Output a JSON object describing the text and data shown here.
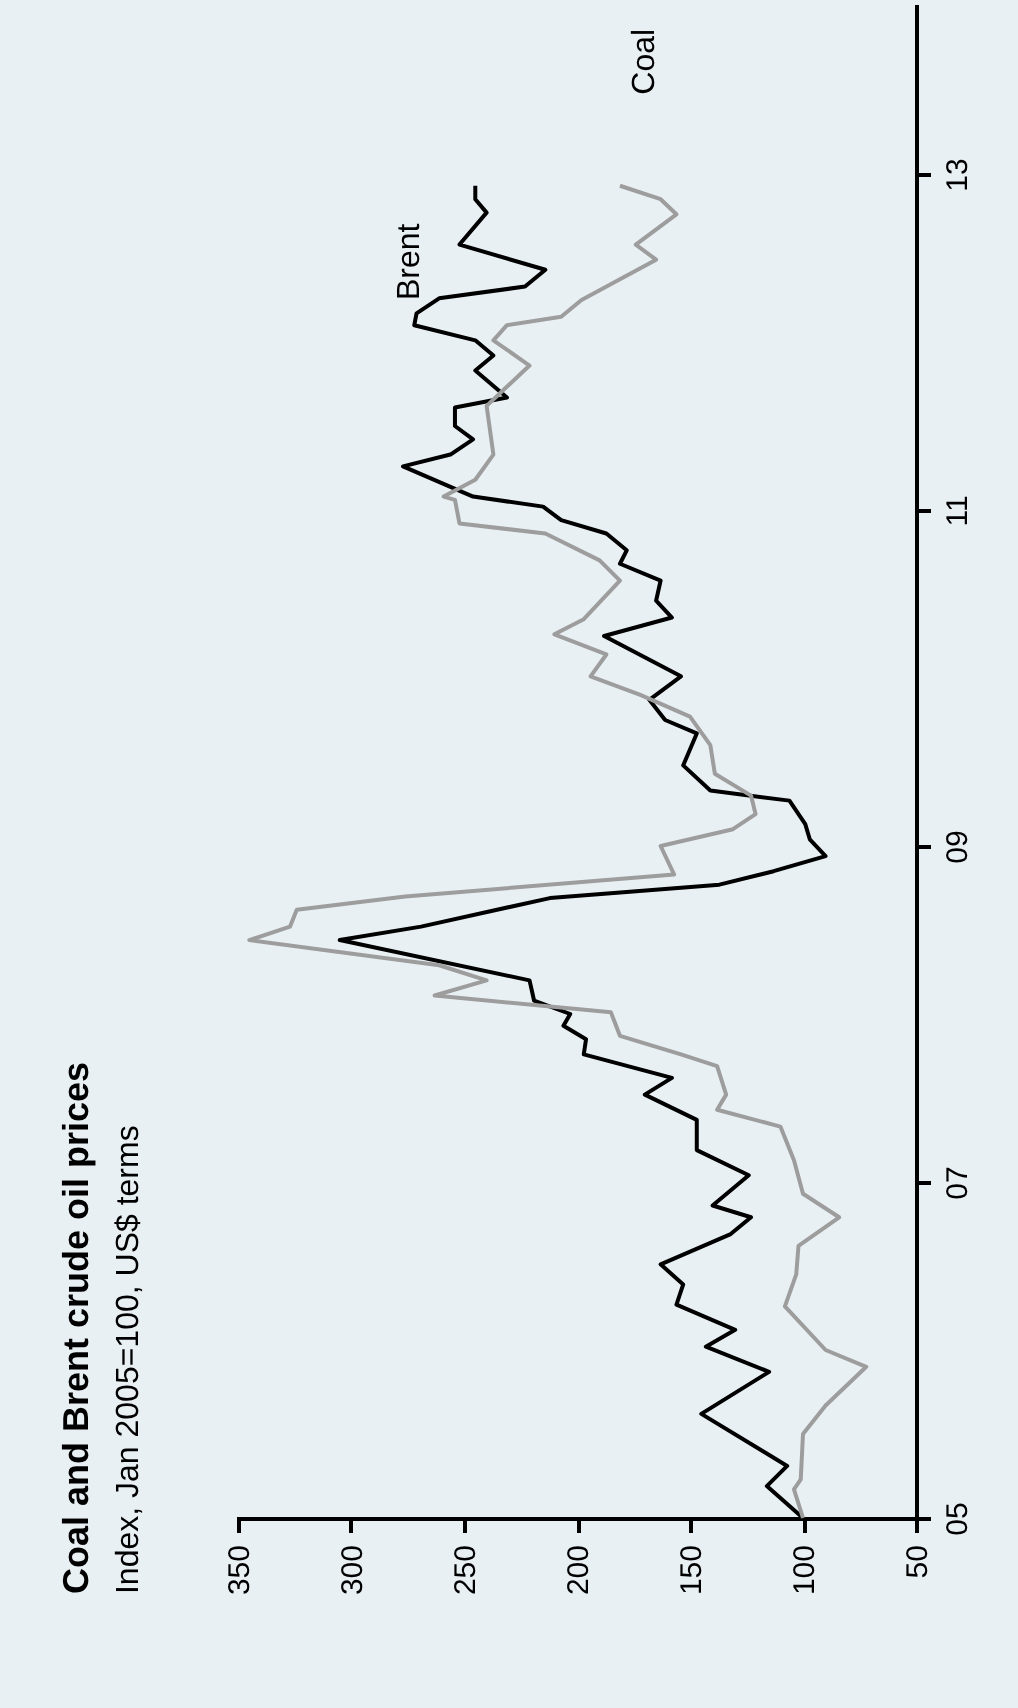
{
  "chart_data": {
    "type": "line",
    "orientation": "horizontal",
    "title": "Coal and Brent crude oil prices",
    "subtitle": "Index, Jan 2005=100, US$ terms",
    "ylim": [
      2005,
      2014
    ],
    "yticks": [
      {
        "value": 2005,
        "label": "05"
      },
      {
        "value": 2007,
        "label": "07"
      },
      {
        "value": 2009,
        "label": "09"
      },
      {
        "value": 2011,
        "label": "11"
      },
      {
        "value": 2013,
        "label": "13"
      }
    ],
    "xlim": [
      350,
      50
    ],
    "xticks": [
      350,
      300,
      250,
      200,
      150,
      100,
      50
    ],
    "line_style": "solid",
    "marker": "none",
    "series": [
      {
        "name": "Brent",
        "color": "#000000",
        "x": [
          2005.0,
          2005.19,
          2005.31,
          2005.62,
          2005.87,
          2006.02,
          2006.12,
          2006.27,
          2006.39,
          2006.51,
          2006.69,
          2006.79,
          2006.86,
          2007.04,
          2007.19,
          2007.37,
          2007.52,
          2007.62,
          2007.76,
          2007.85,
          2007.93,
          2008.0,
          2008.08,
          2008.2,
          2008.44,
          2008.52,
          2008.69,
          2008.77,
          2008.85,
          2008.94,
          2009.04,
          2009.13,
          2009.27,
          2009.33,
          2009.48,
          2009.67,
          2009.75,
          2009.87,
          2010.01,
          2010.25,
          2010.36,
          2010.46,
          2010.58,
          2010.68,
          2010.76,
          2010.86,
          2010.94,
          2011.02,
          2011.08,
          2011.26,
          2011.33,
          2011.42,
          2011.5,
          2011.61,
          2011.67,
          2011.83,
          2011.92,
          2012.01,
          2012.1,
          2012.17,
          2012.26,
          2012.33,
          2012.43,
          2012.58,
          2012.77,
          2012.85,
          2012.93
        ],
        "values": [
          100,
          116,
          107,
          145,
          115,
          143,
          130,
          156,
          153,
          163,
          132,
          123,
          140,
          124,
          147,
          147,
          170,
          158,
          197,
          196,
          206,
          203,
          219,
          221,
          305,
          269,
          212,
          137,
          113,
          90,
          97,
          99,
          106,
          141,
          153,
          147,
          161,
          168,
          154,
          188,
          158,
          165,
          163,
          181,
          178,
          187,
          207,
          215,
          246,
          277,
          256,
          246,
          254,
          254,
          231,
          245,
          237,
          245,
          272,
          271,
          261,
          223,
          214,
          252,
          240,
          245,
          245
        ]
      },
      {
        "name": "Coal",
        "color": "#9d9d9d",
        "x": [
          2005.0,
          2005.17,
          2005.23,
          2005.5,
          2005.67,
          2005.9,
          2006.0,
          2006.26,
          2006.45,
          2006.62,
          2006.79,
          2006.93,
          2007.13,
          2007.33,
          2007.43,
          2007.52,
          2007.69,
          2007.76,
          2007.87,
          2008.01,
          2008.11,
          2008.2,
          2008.29,
          2008.44,
          2008.52,
          2008.62,
          2008.7,
          2008.83,
          2009.0,
          2009.1,
          2009.19,
          2009.3,
          2009.43,
          2009.6,
          2009.77,
          2009.9,
          2010.01,
          2010.14,
          2010.26,
          2010.35,
          2010.58,
          2010.7,
          2010.86,
          2010.92,
          2011.06,
          2011.08,
          2011.18,
          2011.33,
          2011.62,
          2011.86,
          2012.01,
          2012.1,
          2012.15,
          2012.25,
          2012.49,
          2012.58,
          2012.76,
          2012.85,
          2012.93
        ],
        "values": [
          100,
          104,
          101,
          100,
          90,
          72,
          90,
          108,
          103,
          102,
          84,
          100,
          104,
          110,
          138,
          134,
          138,
          154,
          181,
          185,
          263,
          240,
          261,
          345,
          327,
          324,
          276,
          157,
          163,
          131,
          121,
          123,
          139,
          141,
          150,
          172,
          194,
          187,
          210,
          197,
          181,
          190,
          214,
          252,
          254,
          259,
          245,
          237,
          240,
          221,
          237,
          231,
          207,
          198,
          165,
          174,
          156,
          163,
          181
        ]
      }
    ]
  }
}
